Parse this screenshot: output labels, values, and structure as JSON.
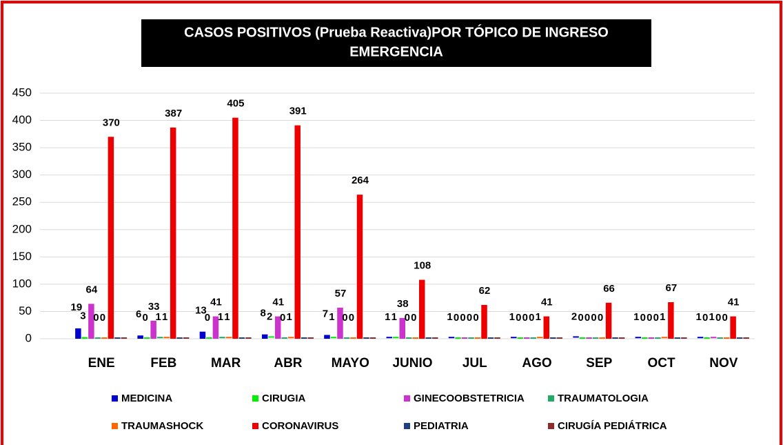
{
  "chart_data": {
    "type": "bar",
    "title": [
      "CASOS POSITIVOS (Prueba  Reactiva)POR TÓPICO DE INGRESO",
      "EMERGENCIA"
    ],
    "categories": [
      "ENE",
      "FEB",
      "MAR",
      "ABR",
      "MAYO",
      "JUNIO",
      "JUL",
      "AGO",
      "SEP",
      "OCT",
      "NOV"
    ],
    "series": [
      {
        "name": "MEDICINA",
        "color": "#0000cc",
        "values": [
          19,
          6,
          13,
          8,
          7,
          1,
          1,
          1,
          2,
          1,
          1
        ]
      },
      {
        "name": "CIRUGIA",
        "color": "#00ee00",
        "values": [
          3,
          0,
          0,
          2,
          1,
          1,
          0,
          0,
          0,
          0,
          0
        ]
      },
      {
        "name": "GINECOOBSTETRICIA",
        "color": "#cc33cc",
        "values": [
          64,
          33,
          41,
          41,
          57,
          38,
          0,
          0,
          0,
          0,
          1
        ]
      },
      {
        "name": "TRAUMATOLOGIA",
        "color": "#22aa66",
        "values": [
          0,
          1,
          1,
          0,
          0,
          0,
          0,
          0,
          0,
          0,
          0
        ]
      },
      {
        "name": "TRAUMASHOCK",
        "color": "#ff6600",
        "values": [
          0,
          1,
          1,
          1,
          0,
          0,
          0,
          1,
          0,
          1,
          0
        ]
      },
      {
        "name": "CORONAVIRUS",
        "color": "#ee0000",
        "values": [
          370,
          387,
          405,
          391,
          264,
          108,
          62,
          41,
          66,
          67,
          41
        ]
      },
      {
        "name": "PEDIATRIA",
        "color": "#1f3f7f",
        "labels": false,
        "values": [
          0,
          0,
          0,
          0,
          0,
          0,
          0,
          0,
          0,
          0,
          0
        ]
      },
      {
        "name": "CIRUGÍA PEDIÁTRICA",
        "color": "#8b2b2b",
        "labels": false,
        "values": [
          0,
          0,
          0,
          0,
          0,
          0,
          0,
          0,
          0,
          0,
          0
        ]
      }
    ],
    "ylim": [
      0,
      450
    ],
    "yticks": [
      0,
      50,
      100,
      150,
      200,
      250,
      300,
      350,
      400,
      450
    ],
    "grid": true,
    "legend": "bottom"
  }
}
